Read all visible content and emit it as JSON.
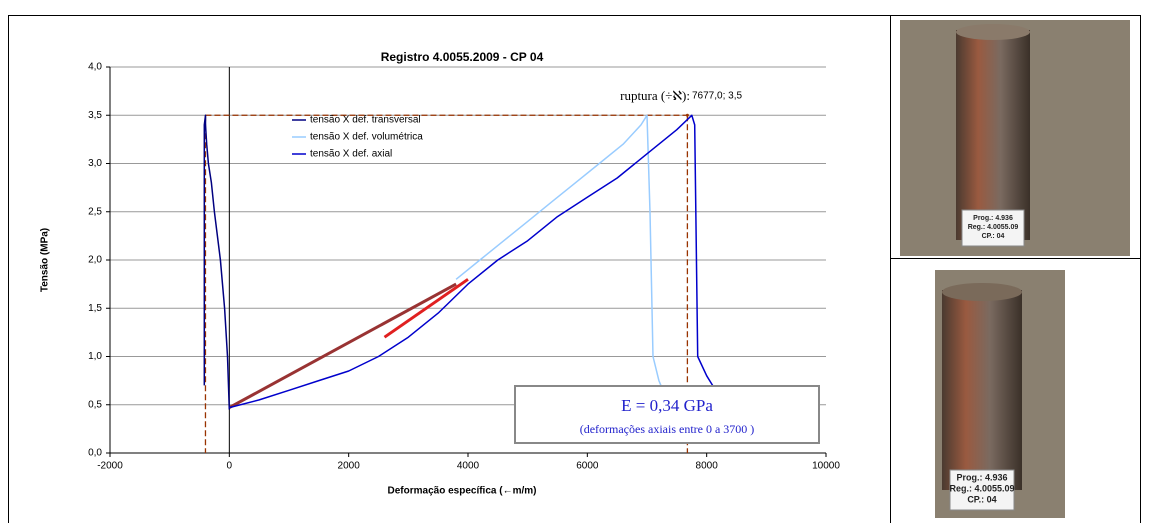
{
  "chart_data": {
    "type": "line",
    "title": "Registro 4.0055.2009 - CP 04",
    "x_label": "Deformação específica (←m/m)",
    "y_label": "Tensão (MPa)",
    "xlim": [
      -2000,
      10000
    ],
    "xticks": [
      -2000,
      0,
      2000,
      4000,
      6000,
      8000,
      10000
    ],
    "ylim": [
      0,
      4
    ],
    "yticks": [
      {
        "value": 0,
        "label": "0,0"
      },
      {
        "value": 0.5,
        "label": "0,5"
      },
      {
        "value": 1,
        "label": "1,0"
      },
      {
        "value": 1.5,
        "label": "1,5"
      },
      {
        "value": 2,
        "label": "2,0"
      },
      {
        "value": 2.5,
        "label": "2,5"
      },
      {
        "value": 3,
        "label": "3,0"
      },
      {
        "value": 3.5,
        "label": "3,5"
      },
      {
        "value": 4,
        "label": "4,0"
      }
    ],
    "grid": true,
    "series": [
      {
        "name": "tensão X def. transversal",
        "color": "#000080",
        "x": [
          0,
          -30,
          -80,
          -150,
          -250,
          -300,
          -350,
          -380,
          -400,
          -400,
          -420,
          -420
        ],
        "values": [
          0.45,
          1.0,
          1.5,
          2.0,
          2.5,
          2.8,
          3.0,
          3.2,
          3.4,
          3.5,
          3.4,
          0.7
        ]
      },
      {
        "name": "tensão X def. volumétrica",
        "color": "#99ccff",
        "x": [
          3800,
          4200,
          4600,
          5000,
          5400,
          5800,
          6200,
          6600,
          6900,
          7000,
          7050,
          7100,
          7200,
          7300
        ],
        "values": [
          1.8,
          2.0,
          2.2,
          2.4,
          2.6,
          2.8,
          3.0,
          3.2,
          3.4,
          3.5,
          2.5,
          1.0,
          0.75,
          0.6
        ]
      },
      {
        "name": "tensão X def. axial",
        "color": "#0000cc",
        "x": [
          0,
          500,
          1000,
          1500,
          2000,
          2500,
          3000,
          3500,
          4000,
          4500,
          5000,
          5500,
          6000,
          6500,
          7000,
          7500,
          7750,
          7800,
          7850,
          8000,
          8100
        ],
        "values": [
          0.47,
          0.55,
          0.65,
          0.75,
          0.85,
          1.0,
          1.2,
          1.45,
          1.75,
          2.0,
          2.2,
          2.45,
          2.65,
          2.85,
          3.1,
          3.35,
          3.5,
          3.4,
          1.0,
          0.8,
          0.7
        ]
      }
    ],
    "trend_lines": [
      {
        "color": "#993333",
        "x": [
          0,
          3800
        ],
        "values": [
          0.47,
          1.75
        ]
      },
      {
        "color": "#e02020",
        "x": [
          2600,
          4000
        ],
        "values": [
          1.2,
          1.8
        ]
      }
    ],
    "rupture": {
      "x": 7677.0,
      "y": 3.5,
      "label": "ruptura (÷ℵ):",
      "value_label": "7677,0; 3,5"
    },
    "modulus_box": {
      "text": "E = 0,34 GPa",
      "note": "(deformações axiais entre 0 a 3700 )"
    }
  },
  "photos": [
    {
      "labels": [
        "Prog.: 4.936",
        "Reg.: 4.0055.09",
        "CP.: 04"
      ]
    },
    {
      "labels": [
        "Prog.: 4.936",
        "Reg.: 4.0055.09",
        "CP.: 04"
      ]
    }
  ]
}
